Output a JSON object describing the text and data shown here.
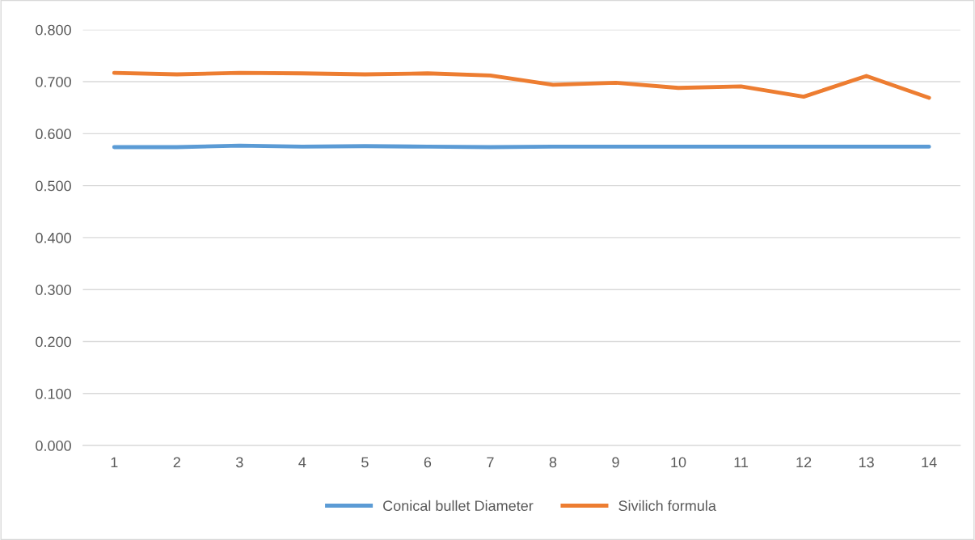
{
  "chart_data": {
    "type": "line",
    "categories": [
      "1",
      "2",
      "3",
      "4",
      "5",
      "6",
      "7",
      "8",
      "9",
      "10",
      "11",
      "12",
      "13",
      "14"
    ],
    "series": [
      {
        "name": "Conical bullet Diameter",
        "color": "#5b9bd5",
        "values": [
          0.574,
          0.574,
          0.577,
          0.575,
          0.576,
          0.575,
          0.574,
          0.575,
          0.575,
          0.575,
          0.575,
          0.575,
          0.575,
          0.575
        ]
      },
      {
        "name": "Sivilich formula",
        "color": "#ed7d31",
        "values": [
          0.717,
          0.714,
          0.717,
          0.716,
          0.714,
          0.716,
          0.712,
          0.694,
          0.698,
          0.688,
          0.691,
          0.671,
          0.711,
          0.669
        ]
      }
    ],
    "ylim": [
      0,
      0.8
    ],
    "yticks": [
      {
        "value": 0,
        "label": "0.000"
      },
      {
        "value": 0.1,
        "label": "0.100"
      },
      {
        "value": 0.2,
        "label": "0.200"
      },
      {
        "value": 0.3,
        "label": "0.300"
      },
      {
        "value": 0.4,
        "label": "0.400"
      },
      {
        "value": 0.5,
        "label": "0.500"
      },
      {
        "value": 0.6,
        "label": "0.600"
      },
      {
        "value": 0.7,
        "label": "0.700"
      },
      {
        "value": 0.8,
        "label": "0.800"
      }
    ],
    "grid": "y",
    "legend": "bottom",
    "marker": "none",
    "line_style": "solid"
  }
}
